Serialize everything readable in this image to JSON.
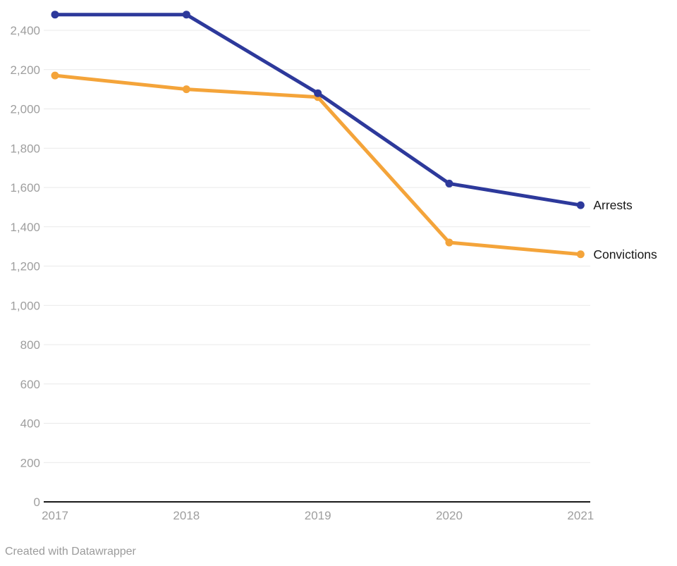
{
  "chart_data": {
    "type": "line",
    "x": [
      "2017",
      "2018",
      "2019",
      "2020",
      "2021"
    ],
    "series": [
      {
        "name": "Convictions",
        "color": "#f4a43a",
        "values": [
          2170,
          2100,
          2060,
          1320,
          1260
        ]
      },
      {
        "name": "Arrests",
        "color": "#2d399b",
        "values": [
          2480,
          2480,
          2080,
          1620,
          1510
        ]
      }
    ],
    "title": "",
    "xlabel": "",
    "ylabel": "",
    "ylim": [
      0,
      2400
    ],
    "ytick_step": 200,
    "ytick_labels": [
      "0",
      "200",
      "400",
      "600",
      "800",
      "1,000",
      "1,200",
      "1,400",
      "1,600",
      "1,800",
      "2,000",
      "2,200",
      "2,400"
    ],
    "grid": true,
    "legend_position": "right-of-line-end",
    "line_width": 5,
    "point_radius": 5.5
  },
  "colors": {
    "gridline": "#e9e9e9",
    "axis_line": "#191919",
    "tick_label": "#9e9e9e",
    "series_label": "#161616",
    "credit": "#9b9b9b",
    "background": "#ffffff"
  },
  "footer": {
    "credit": "Created with Datawrapper"
  }
}
